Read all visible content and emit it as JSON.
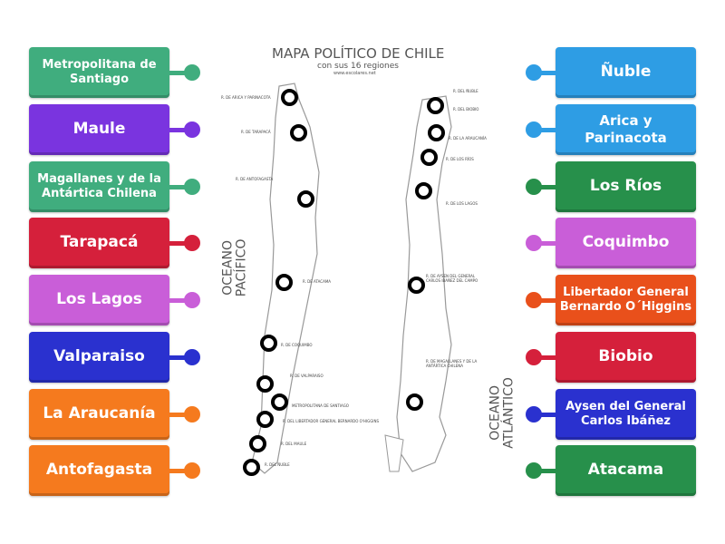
{
  "map": {
    "title": "MAPA POLÍTICO DE CHILE",
    "subtitle": "con sus 16 regiones",
    "site": "www.escolares.net",
    "ocean_pacific": "OCEANO PACÍFICO",
    "ocean_atlantic": "OCEANO ATLÁNTICO",
    "region_labels": [
      "R. DE ARICA Y PARINACOTA",
      "R. DE TARAPACÁ",
      "R. DE ANTOFAGASTA",
      "R. DE ATACAMA",
      "R. DE COQUIMBO",
      "R. DE VALPARAISO",
      "METROPOLITANA DE SANTIAGO",
      "R. DEL LIBERTADOR GENERAL BERNARDO O'HIGGINS",
      "R. DEL MAULE",
      "R. DEL ÑUBLE",
      "R. DEL ÑUBLE",
      "R. DEL BIOBIO",
      "R. DE LA ARAUCANÍA",
      "R. DE LOS RÍOS",
      "R. DE LOS LAGOS",
      "R. DE AYSEN DEL GENERAL CARLOS IBAÑEZ DEL CAMPO",
      "R. DE MAGALLANES Y DE LA ANTÁRTICA CHILENA"
    ]
  },
  "left_items": [
    {
      "label": "Metropolitana de Santiago",
      "color": "#40ad7e"
    },
    {
      "label": "Maule",
      "color": "#7a34df"
    },
    {
      "label": "Magallanes y de la Antártica Chilena",
      "color": "#40ad7e"
    },
    {
      "label": "Tarapacá",
      "color": "#d5203b"
    },
    {
      "label": "Los Lagos",
      "color": "#c95ed8"
    },
    {
      "label": "Valparaiso",
      "color": "#2a31cf"
    },
    {
      "label": "La Araucanía",
      "color": "#f57a1e"
    },
    {
      "label": "Antofagasta",
      "color": "#f57a1e"
    }
  ],
  "right_items": [
    {
      "label": "Ñuble",
      "color": "#2e9de4"
    },
    {
      "label": "Arica y Parinacota",
      "color": "#2e9de4"
    },
    {
      "label": "Los Ríos",
      "color": "#27904b"
    },
    {
      "label": "Coquimbo",
      "color": "#c95ed8"
    },
    {
      "label": "Libertador General Bernardo O´Higgins",
      "color": "#e9501b"
    },
    {
      "label": "Biobio",
      "color": "#d5203b"
    },
    {
      "label": "Aysen del General Carlos Ibáñez",
      "color": "#2a31cf"
    },
    {
      "label": "Atacama",
      "color": "#27904b"
    }
  ]
}
